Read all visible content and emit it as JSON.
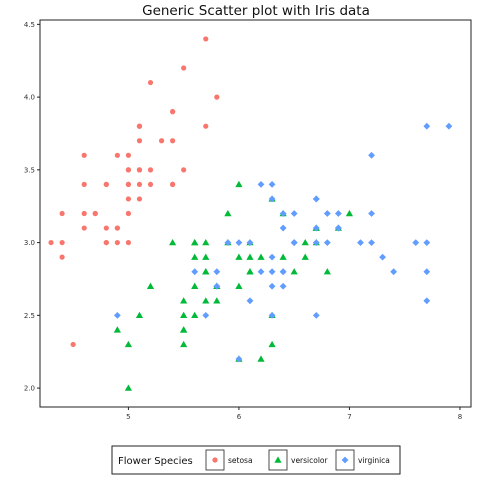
{
  "chart_data": {
    "type": "scatter",
    "title": "Generic Scatter plot with Iris data",
    "xlabel": "",
    "ylabel": "",
    "xlim": [
      4.2,
      8.1
    ],
    "ylim": [
      1.87,
      4.53
    ],
    "x_ticks": [
      5,
      6,
      7,
      8
    ],
    "x_tick_labels": [
      "5",
      "6",
      "7",
      "8"
    ],
    "y_ticks": [
      2.0,
      2.5,
      3.0,
      3.5,
      4.0,
      4.5
    ],
    "y_tick_labels": [
      "2.0",
      "2.5",
      "3.0",
      "3.5",
      "4.0",
      "4.5"
    ],
    "grid": false,
    "legend": {
      "title": "Flower Species",
      "placement": "bottom-center",
      "entries": [
        "setosa",
        "versicolor",
        "virginica"
      ]
    },
    "series": [
      {
        "name": "setosa",
        "marker": "circle",
        "color": "#f8766d",
        "x": [
          5.1,
          4.9,
          4.7,
          4.6,
          5.0,
          5.4,
          4.6,
          5.0,
          4.4,
          4.9,
          5.4,
          4.8,
          4.8,
          4.3,
          5.8,
          5.7,
          5.4,
          5.1,
          5.7,
          5.1,
          5.4,
          5.1,
          4.6,
          5.1,
          4.8,
          5.0,
          5.0,
          5.2,
          5.2,
          4.7,
          4.8,
          5.4,
          5.2,
          5.5,
          4.9,
          5.0,
          5.5,
          4.9,
          4.4,
          5.1,
          5.0,
          4.5,
          4.4,
          5.0,
          5.1,
          4.8,
          5.1,
          4.6,
          5.3,
          5.0
        ],
        "y": [
          3.5,
          3.0,
          3.2,
          3.1,
          3.6,
          3.9,
          3.4,
          3.4,
          2.9,
          3.1,
          3.7,
          3.4,
          3.0,
          3.0,
          4.0,
          4.4,
          3.9,
          3.5,
          3.8,
          3.8,
          3.4,
          3.7,
          3.6,
          3.3,
          3.4,
          3.0,
          3.4,
          3.5,
          3.4,
          3.2,
          3.1,
          3.4,
          4.1,
          4.2,
          3.1,
          3.2,
          3.5,
          3.6,
          3.0,
          3.4,
          3.5,
          2.3,
          3.2,
          3.5,
          3.8,
          3.0,
          3.8,
          3.2,
          3.7,
          3.3
        ]
      },
      {
        "name": "versicolor",
        "marker": "triangle",
        "color": "#00ba38",
        "x": [
          7.0,
          6.4,
          6.9,
          5.5,
          6.5,
          5.7,
          6.3,
          4.9,
          6.6,
          5.2,
          5.0,
          5.9,
          6.0,
          6.1,
          5.6,
          6.7,
          5.6,
          5.8,
          6.2,
          5.6,
          5.9,
          6.1,
          6.3,
          6.1,
          6.4,
          6.6,
          6.8,
          6.7,
          6.0,
          5.7,
          5.5,
          5.5,
          5.8,
          6.0,
          5.4,
          6.0,
          6.7,
          6.3,
          5.6,
          5.5,
          5.5,
          6.1,
          5.8,
          5.0,
          5.6,
          5.7,
          5.7,
          6.2,
          5.1,
          5.7
        ],
        "y": [
          3.2,
          3.2,
          3.1,
          2.3,
          2.8,
          2.8,
          3.3,
          2.4,
          2.9,
          2.7,
          2.0,
          3.0,
          2.2,
          2.9,
          2.9,
          3.1,
          3.0,
          2.7,
          2.2,
          2.5,
          3.2,
          2.8,
          2.5,
          2.8,
          2.9,
          3.0,
          2.8,
          3.0,
          2.9,
          2.6,
          2.4,
          2.4,
          2.7,
          2.7,
          3.0,
          3.4,
          3.1,
          2.3,
          3.0,
          2.5,
          2.6,
          3.0,
          2.6,
          2.3,
          2.7,
          3.0,
          2.9,
          2.9,
          2.5,
          2.8
        ]
      },
      {
        "name": "virginica",
        "marker": "diamond",
        "color": "#619cff",
        "x": [
          6.3,
          5.8,
          7.1,
          6.3,
          6.5,
          7.6,
          4.9,
          7.3,
          6.7,
          7.2,
          6.5,
          6.4,
          6.8,
          5.7,
          5.8,
          6.4,
          6.5,
          7.7,
          7.7,
          6.0,
          6.9,
          5.6,
          7.7,
          6.3,
          6.7,
          7.2,
          6.2,
          6.1,
          6.4,
          7.2,
          7.4,
          7.9,
          6.4,
          6.3,
          6.1,
          7.7,
          6.3,
          6.4,
          6.0,
          6.9,
          6.7,
          6.9,
          5.8,
          6.8,
          6.7,
          6.7,
          6.3,
          6.5,
          6.2,
          5.9
        ],
        "y": [
          3.3,
          2.7,
          3.0,
          2.9,
          3.0,
          3.0,
          2.5,
          2.9,
          2.5,
          3.6,
          3.2,
          2.7,
          3.0,
          2.5,
          2.8,
          3.2,
          3.0,
          3.8,
          2.6,
          2.2,
          3.2,
          2.8,
          2.8,
          2.7,
          3.3,
          3.2,
          2.8,
          3.0,
          2.8,
          3.0,
          2.8,
          3.8,
          2.8,
          2.8,
          2.6,
          3.0,
          3.4,
          3.1,
          3.0,
          3.1,
          3.1,
          3.1,
          2.7,
          3.2,
          3.3,
          3.0,
          2.5,
          3.0,
          3.4,
          3.0
        ]
      }
    ]
  }
}
